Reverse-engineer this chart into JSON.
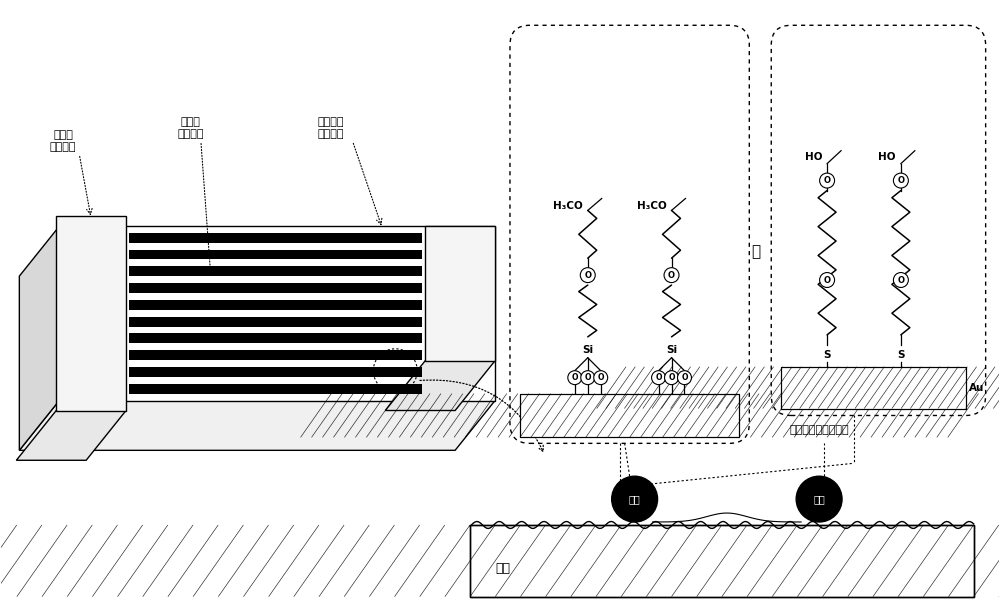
{
  "bg_color": "#ffffff",
  "text_color": "#000000",
  "label_left1": "抗细胞\n黏附基底",
  "label_left2": "可细胞\n黏附纤维",
  "label_left3": "纤维与基\n底粘接区",
  "label_bottom1": "纤维",
  "label_bottom2": "纤维",
  "label_bottom3": "基底",
  "label_monolayer": "抗细胞黏附单分子层",
  "label_or": "或",
  "label_au": "Au"
}
